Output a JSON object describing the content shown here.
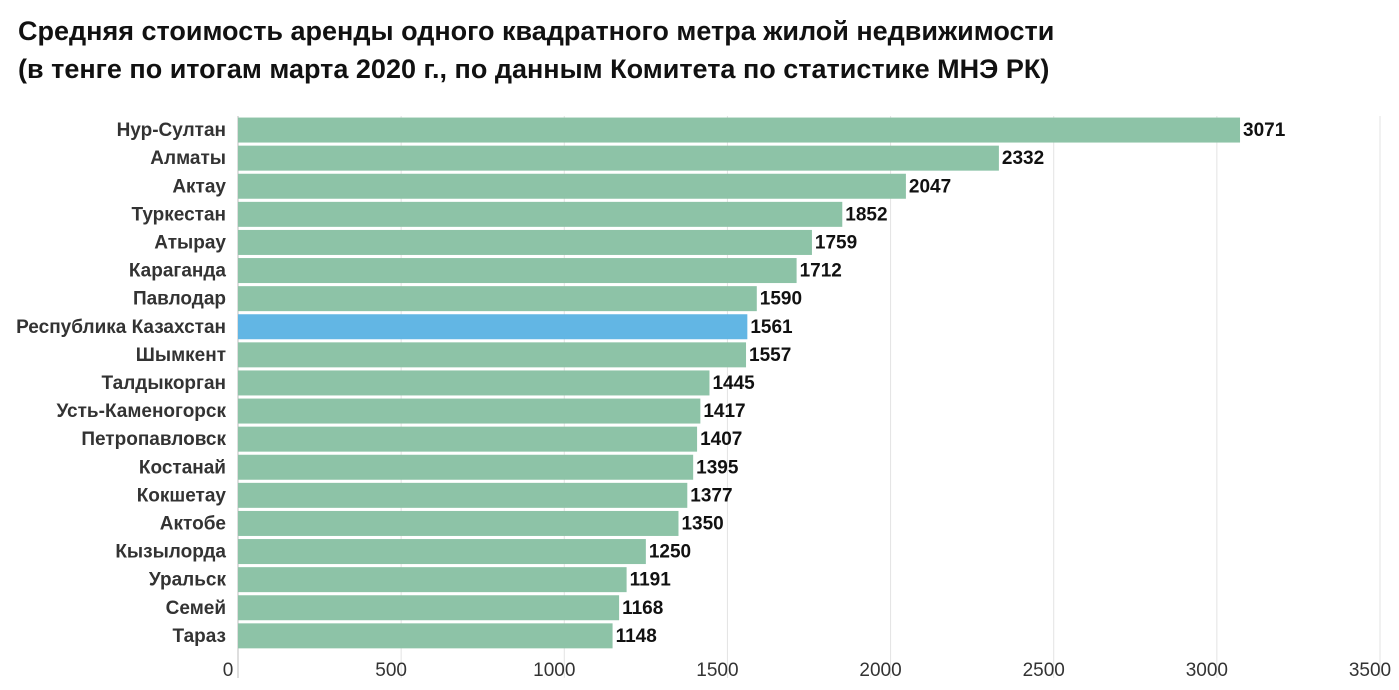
{
  "title_lines": [
    "Средняя стоимость аренды одного квадратного метра жилой недвижимости",
    "(в тенге по итогам марта 2020 г., по данным Комитета по статистике МНЭ РК)"
  ],
  "colors": {
    "bar": "#8dc3a7",
    "highlight": "#62b6e4",
    "grid": "#e3e3e3",
    "label": "#333333",
    "value": "#111111"
  },
  "chart_data": {
    "type": "bar",
    "orientation": "horizontal",
    "title": "Средняя стоимость аренды одного квадратного метра жилой недвижимости (в тенге по итогам марта 2020 г., по данным Комитета по статистике МНЭ РК)",
    "xlabel": "",
    "ylabel": "",
    "xlim": [
      0,
      3500
    ],
    "ticks": [
      0,
      500,
      1000,
      1500,
      2000,
      2500,
      3000,
      3500
    ],
    "grid": true,
    "highlight": "Республика Казахстан",
    "categories": [
      "Нур-Султан",
      "Алматы",
      "Актау",
      "Туркестан",
      "Атырау",
      "Караганда",
      "Павлодар",
      "Республика Казахстан",
      "Шымкент",
      "Талдыкорган",
      "Усть-Каменогорск",
      "Петропавловск",
      "Костанай",
      "Кокшетау",
      "Актобе",
      "Кызылорда",
      "Уральск",
      "Семей",
      "Тараз"
    ],
    "values": [
      3071,
      2332,
      2047,
      1852,
      1759,
      1712,
      1590,
      1561,
      1557,
      1445,
      1417,
      1407,
      1395,
      1377,
      1350,
      1250,
      1191,
      1168,
      1148
    ]
  }
}
